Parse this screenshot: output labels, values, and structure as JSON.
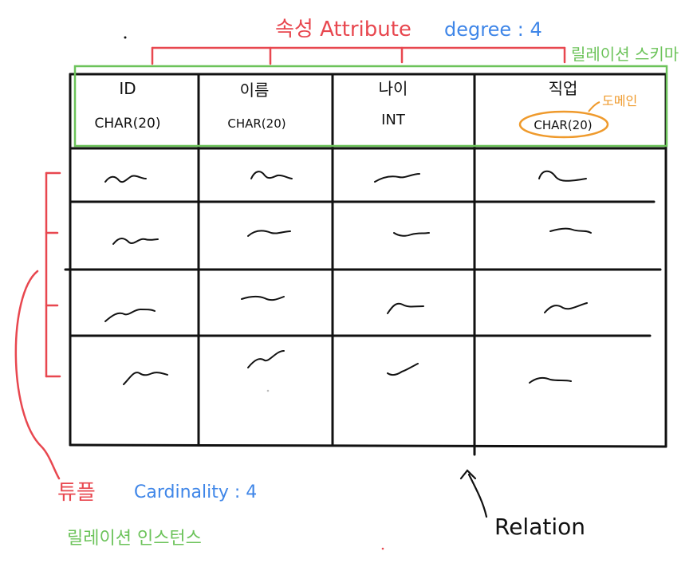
{
  "attribute_label": "속성 Attribute",
  "degree_label": "degree : 4",
  "schema_label": "릴레이션 스키마",
  "domain_label": "도메인",
  "columns": [
    {
      "name": "ID",
      "type": "CHAR(20)"
    },
    {
      "name": "이름",
      "type": "CHAR(20)"
    },
    {
      "name": "나이",
      "type": "INT"
    },
    {
      "name": "직업",
      "type": "CHAR(20)"
    }
  ],
  "tuple_label": "튜플",
  "cardinality_label": "Cardinality : 4",
  "instance_label": "릴레이션 인스턴스",
  "relation_label": "Relation",
  "colors": {
    "red": "#e8474f",
    "blue": "#3f86e8",
    "green": "#6cc35a",
    "orange": "#ef9a2c",
    "ink": "#111111"
  }
}
